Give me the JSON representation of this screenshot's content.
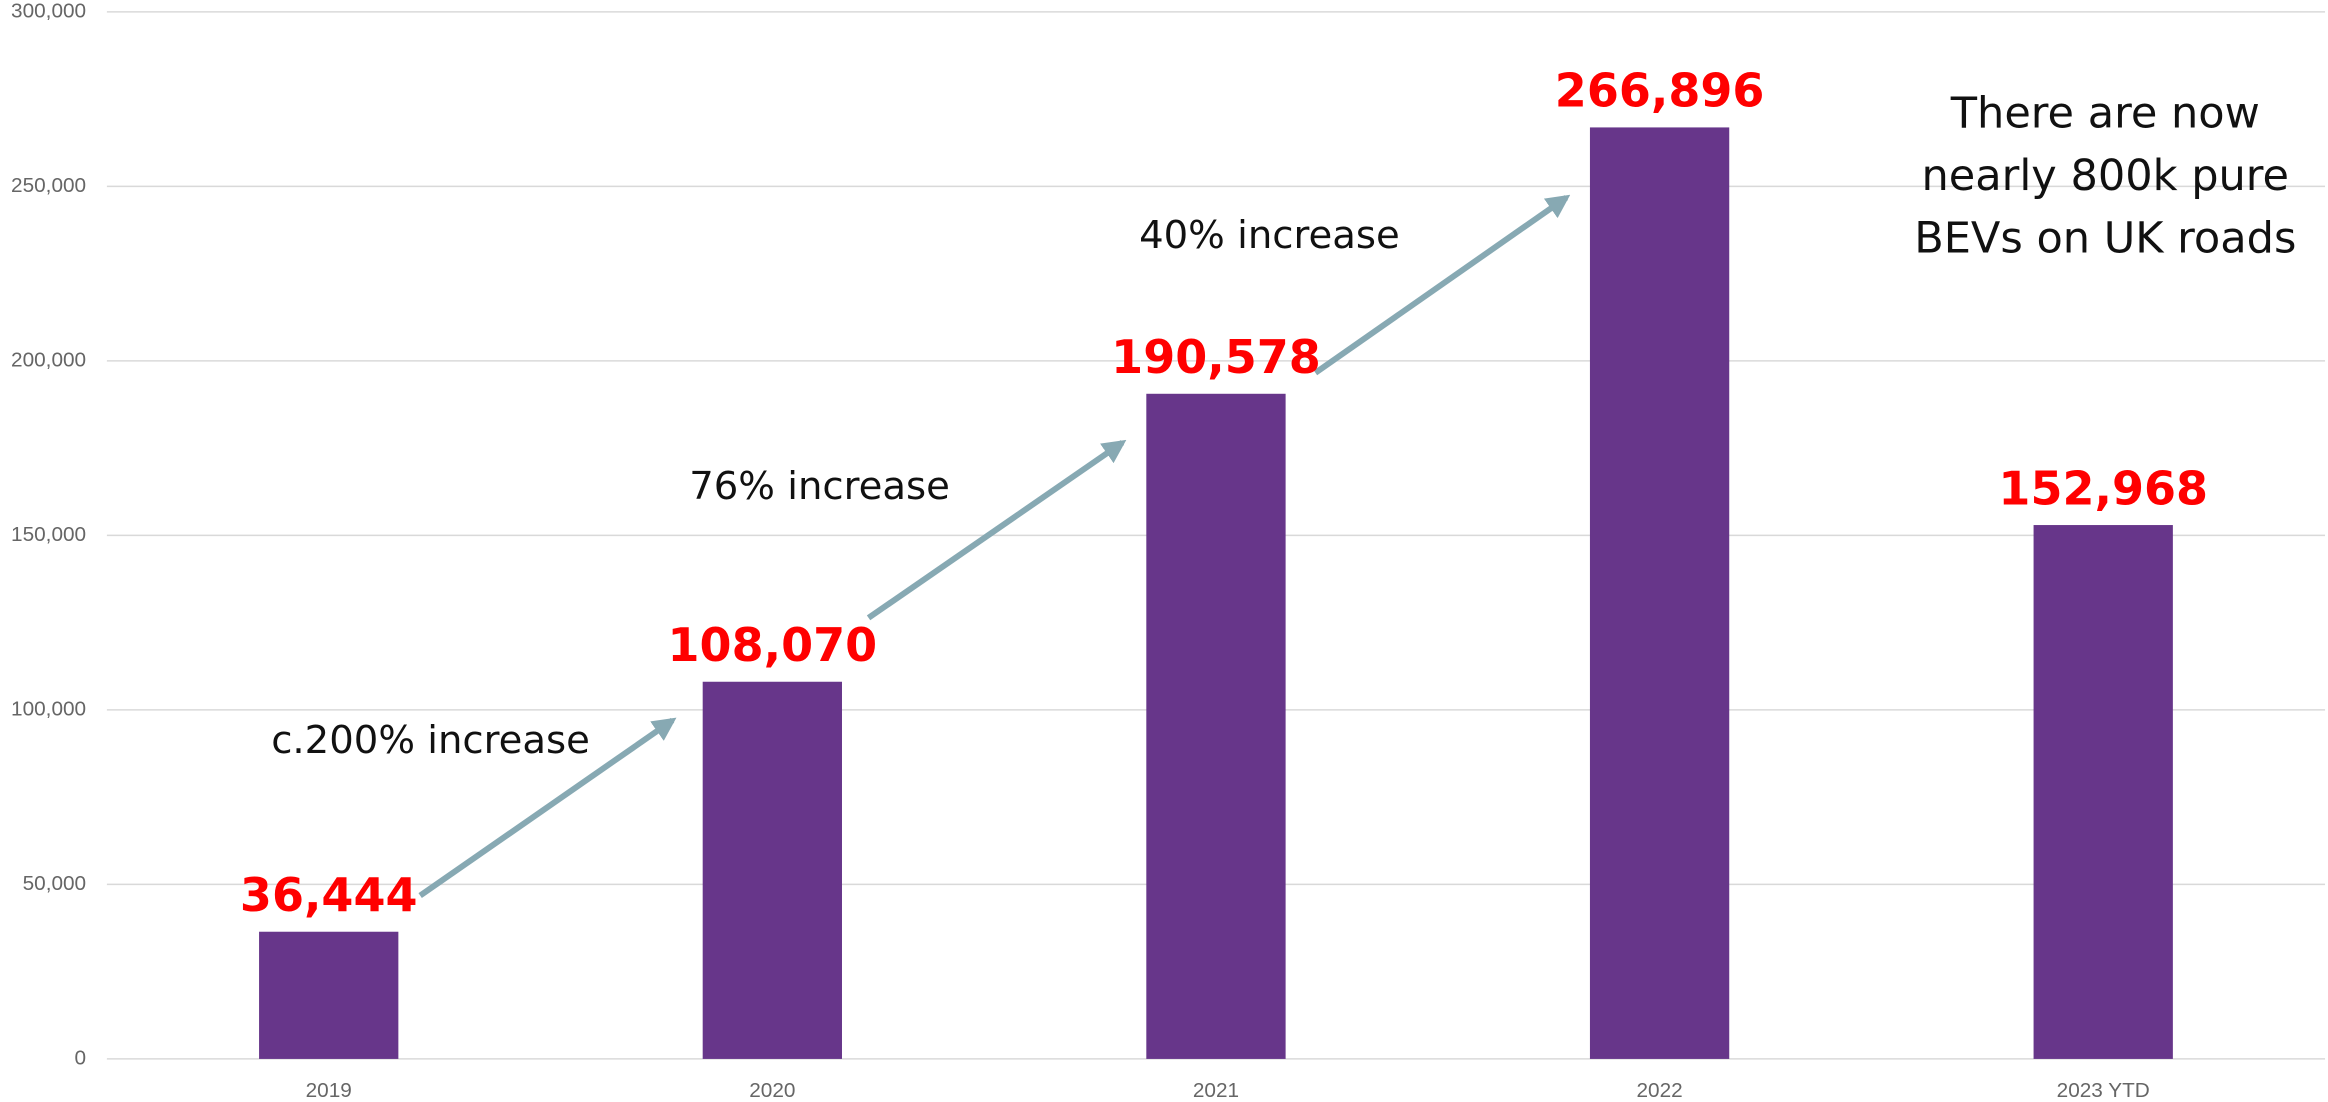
{
  "chart_data": {
    "type": "bar",
    "categories": [
      "2019",
      "2020",
      "2021",
      "2022",
      "2023 YTD"
    ],
    "values": [
      36444,
      108070,
      190578,
      266896,
      152968
    ],
    "value_labels": [
      "36,444",
      "108,070",
      "190,578",
      "266,896",
      "152,968"
    ],
    "color": "#67368a",
    "ylim": [
      0,
      300000
    ],
    "yticks": [
      0,
      {
        "value": 50000,
        "label": "50,000"
      },
      {
        "value": 100000,
        "label": "100,000"
      },
      {
        "value": 150000,
        "label": "150,000"
      },
      {
        "value": 200000,
        "label": "200,000"
      },
      {
        "value": 250000,
        "label": "250,000"
      },
      {
        "value": 300000,
        "label": "300,000"
      }
    ],
    "grid": true,
    "annotations": [
      "c.200% increase",
      "76% increase",
      "40% increase"
    ],
    "note": [
      "There are now",
      "nearly 800k pure",
      "BEVs on UK roads"
    ]
  }
}
